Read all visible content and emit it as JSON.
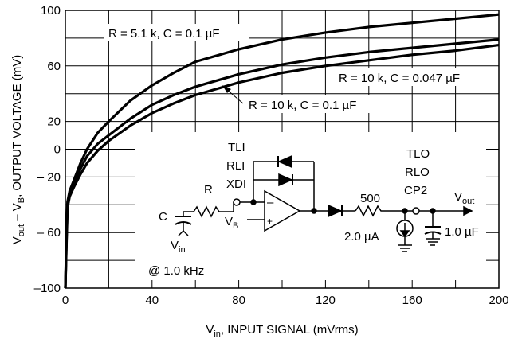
{
  "chart_data": {
    "type": "line",
    "title": "",
    "xlabel": {
      "main": "V",
      "sub": "in",
      "rest": ", INPUT SIGNAL (mVrms)"
    },
    "ylabel": {
      "p1": "V",
      "s1": "out",
      "p2": " – V",
      "s2": "B",
      "p3": ", OUTPUT VOLTAGE (mV)"
    },
    "xlim": [
      0,
      200
    ],
    "ylim": [
      -100,
      100
    ],
    "x_ticks": [
      0,
      40,
      80,
      120,
      160,
      200
    ],
    "y_ticks": [
      {
        "v": 100,
        "label": "100"
      },
      {
        "v": 60,
        "label": "60"
      },
      {
        "v": 20,
        "label": "20"
      },
      {
        "v": 0,
        "label": "0"
      },
      {
        "v": -20,
        "label": "– 20"
      },
      {
        "v": -60,
        "label": "– 60"
      },
      {
        "v": -100,
        "label": "–100"
      }
    ],
    "grid": true,
    "series": [
      {
        "name": "R = 5.1 k, C = 0.1 µF",
        "x": [
          0,
          0.5,
          1,
          2,
          4,
          7,
          10,
          15,
          20,
          30,
          40,
          50,
          60,
          80,
          100,
          120,
          140,
          160,
          180,
          200
        ],
        "y": [
          -100,
          -60,
          -38,
          -30,
          -22,
          -10,
          0,
          12,
          20,
          35,
          46,
          55,
          63,
          72,
          79,
          84,
          88,
          91,
          94,
          97
        ]
      },
      {
        "name": "R = 10 k, C = 0.047 µF",
        "x": [
          0,
          0.5,
          1,
          2,
          4,
          7,
          10,
          15,
          20,
          30,
          40,
          50,
          60,
          80,
          100,
          120,
          140,
          160,
          180,
          200
        ],
        "y": [
          -100,
          -65,
          -40,
          -32,
          -24,
          -14,
          -5,
          4,
          10,
          22,
          32,
          39,
          45,
          54,
          61,
          66,
          70,
          73,
          76,
          79
        ]
      },
      {
        "name": "R = 10 k, C = 0.1 µF",
        "x": [
          0,
          0.5,
          1,
          2,
          4,
          7,
          10,
          15,
          20,
          30,
          40,
          50,
          60,
          80,
          100,
          120,
          140,
          160,
          180,
          200
        ],
        "y": [
          -100,
          -68,
          -42,
          -34,
          -27,
          -18,
          -10,
          -1,
          6,
          17,
          26,
          33,
          39,
          48,
          55,
          60,
          64,
          68,
          71,
          75
        ]
      }
    ],
    "annotations": {
      "curve1": "R = 5.1 k, C = 0.1 µF",
      "curve2": "R = 10 k, C = 0.047 µF",
      "curve3": "R = 10 k, C = 0.1 µF"
    }
  },
  "schematic": {
    "pins_in": [
      "TLI",
      "RLI",
      "XDI"
    ],
    "pins_out": [
      "TLO",
      "RLO",
      "CP2"
    ],
    "resistor_in": "R",
    "cap_in": "C",
    "vin": {
      "main": "V",
      "sub": "in"
    },
    "freq": "@ 1.0 kHz",
    "vb": {
      "main": "V",
      "sub": "B"
    },
    "plus": "+",
    "minus": "–",
    "resistor_out": "500",
    "current_src": "2.0 µA",
    "cap_out": "1.0 µF",
    "vout": {
      "main": "V",
      "sub": "out"
    }
  }
}
